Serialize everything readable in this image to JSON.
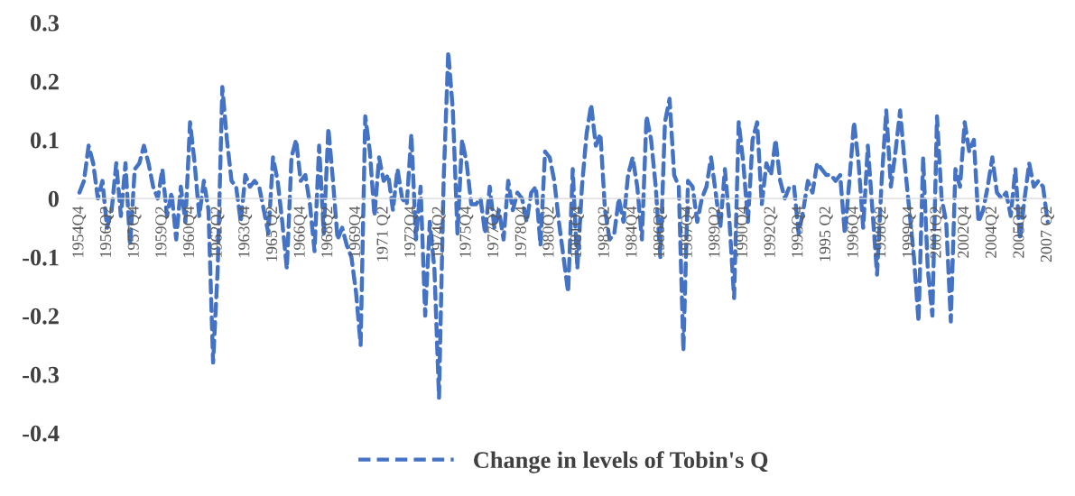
{
  "chart_data": {
    "type": "line",
    "categories": [
      "1954Q4",
      null,
      null,
      null,
      null,
      null,
      "1956Q2",
      null,
      null,
      null,
      null,
      null,
      "1957Q4",
      null,
      null,
      null,
      null,
      null,
      "1959Q2",
      null,
      null,
      null,
      null,
      null,
      "1960Q4",
      null,
      null,
      null,
      null,
      null,
      "1962Q2",
      null,
      null,
      null,
      null,
      null,
      "1963Q4",
      null,
      null,
      null,
      null,
      null,
      "1965 Q2",
      null,
      null,
      null,
      null,
      null,
      "1966Q4",
      null,
      null,
      null,
      null,
      null,
      "1968Q2",
      null,
      null,
      null,
      null,
      null,
      "1969Q4",
      null,
      null,
      null,
      null,
      null,
      "1971 Q2",
      null,
      null,
      null,
      null,
      null,
      "1972Q4",
      null,
      null,
      null,
      null,
      null,
      "1974Q2",
      null,
      null,
      null,
      null,
      null,
      "1975Q4",
      null,
      null,
      null,
      null,
      null,
      "1977Q2",
      null,
      null,
      null,
      null,
      null,
      "1978Q4",
      null,
      null,
      null,
      null,
      null,
      "1980Q2",
      null,
      null,
      null,
      null,
      null,
      "1981Q4",
      null,
      null,
      null,
      null,
      null,
      "1983Q2",
      null,
      null,
      null,
      null,
      null,
      "1984Q4",
      null,
      null,
      null,
      null,
      null,
      "1986Q2",
      null,
      null,
      null,
      null,
      null,
      "1987Q4",
      null,
      null,
      null,
      null,
      null,
      "1989Q2",
      null,
      null,
      null,
      null,
      null,
      "1990Q4",
      null,
      null,
      null,
      null,
      null,
      "1992Q2",
      null,
      null,
      null,
      null,
      null,
      "1993Q4",
      null,
      null,
      null,
      null,
      null,
      "1995 Q2",
      null,
      null,
      null,
      null,
      null,
      "1996Q4",
      null,
      null,
      null,
      null,
      null,
      "1998Q2",
      null,
      null,
      null,
      null,
      null,
      "1999Q4",
      null,
      null,
      null,
      null,
      null,
      "2001Q2",
      null,
      null,
      null,
      null,
      null,
      "2002Q4",
      null,
      null,
      null,
      null,
      null,
      "2004Q2",
      null,
      null,
      null,
      null,
      null,
      "2005Q4",
      null,
      null,
      null,
      null,
      null,
      "2007 Q2"
    ],
    "series": [
      {
        "name": "Change in levels of Tobin's Q",
        "color": "#4472c4",
        "values": [
          0.01,
          0.03,
          0.09,
          0.06,
          0.0,
          0.03,
          -0.05,
          -0.02,
          0.06,
          -0.03,
          0.06,
          -0.08,
          0.05,
          0.06,
          0.09,
          0.06,
          0.02,
          0.0,
          0.05,
          -0.03,
          0.01,
          -0.07,
          0.02,
          -0.04,
          0.13,
          0.06,
          -0.03,
          0.03,
          -0.02,
          -0.28,
          -0.12,
          0.19,
          0.1,
          0.03,
          0.02,
          -0.04,
          0.04,
          0.02,
          0.03,
          0.02,
          -0.02,
          -0.06,
          0.07,
          0.03,
          -0.04,
          -0.12,
          0.07,
          0.1,
          0.03,
          0.04,
          -0.01,
          -0.09,
          0.09,
          -0.06,
          0.12,
          0.03,
          -0.07,
          -0.05,
          -0.08,
          -0.1,
          -0.16,
          -0.25,
          0.14,
          0.08,
          -0.03,
          0.07,
          0.03,
          0.04,
          -0.02,
          0.05,
          0.0,
          -0.01,
          0.11,
          -0.07,
          0.02,
          -0.2,
          -0.04,
          -0.12,
          -0.34,
          0.03,
          0.25,
          0.15,
          -0.06,
          0.1,
          0.06,
          -0.01,
          -0.01,
          0.0,
          -0.06,
          0.02,
          -0.05,
          -0.02,
          -0.07,
          0.03,
          -0.02,
          0.01,
          0.0,
          -0.04,
          0.01,
          0.02,
          -0.08,
          0.08,
          0.07,
          0.03,
          -0.04,
          -0.1,
          -0.16,
          0.05,
          -0.12,
          0.02,
          0.11,
          0.16,
          0.09,
          0.11,
          -0.02,
          -0.07,
          -0.06,
          0.0,
          -0.04,
          0.04,
          0.07,
          0.02,
          -0.07,
          0.14,
          0.1,
          0.02,
          -0.1,
          0.13,
          0.17,
          0.04,
          0.02,
          -0.26,
          0.03,
          0.02,
          -0.04,
          0.0,
          0.02,
          0.07,
          0.01,
          -0.05,
          0.05,
          -0.04,
          -0.17,
          0.13,
          0.06,
          -0.04,
          0.1,
          0.13,
          -0.01,
          0.06,
          0.04,
          0.1,
          0.03,
          0.0,
          0.02,
          0.02,
          -0.06,
          -0.02,
          0.03,
          0.01,
          0.06,
          0.05,
          0.04,
          0.04,
          0.03,
          0.04,
          -0.06,
          0.03,
          0.13,
          0.06,
          -0.05,
          0.09,
          -0.02,
          -0.13,
          0.03,
          0.15,
          0.02,
          0.08,
          0.15,
          0.06,
          -0.02,
          -0.1,
          -0.21,
          0.07,
          -0.12,
          -0.2,
          0.14,
          0.0,
          -0.04,
          -0.21,
          0.05,
          0.02,
          0.13,
          0.08,
          0.1,
          -0.04,
          -0.02,
          0.02,
          0.07,
          0.01,
          0.0,
          0.01,
          -0.03,
          0.05,
          -0.07,
          0.0,
          0.06,
          0.02,
          0.03,
          0.02,
          -0.04
        ]
      }
    ],
    "ylim": [
      -0.4,
      0.3
    ],
    "yticks": [
      -0.4,
      -0.3,
      -0.2,
      -0.1,
      0,
      0.1,
      0.2,
      0.3
    ],
    "legend": "bottom",
    "line_style": "dashed",
    "marker": "none",
    "grid": false
  }
}
